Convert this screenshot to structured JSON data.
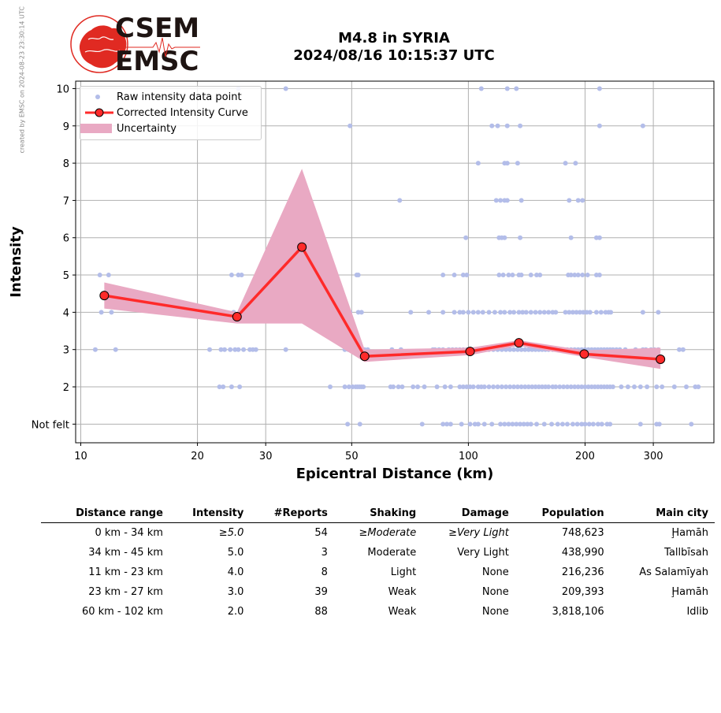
{
  "credit": "created by EMSC on 2024-08-23 23:30:14 UTC",
  "logo": {
    "line1": "CSEM",
    "line2": "EMSC"
  },
  "header": {
    "title": "M4.8 in SYRIA",
    "subtitle": "2024/08/16 10:15:37 UTC"
  },
  "colors": {
    "curve": "#ff2a2a",
    "uncertainty": "#e9a9c3",
    "raw": "#b3bde9",
    "grid": "#b0b0b0",
    "logo_red": "#e02a22"
  },
  "chart_data": {
    "type": "scatter",
    "title": "M4.8 in SYRIA 2024/08/16 10:15:37 UTC",
    "xlabel": "Epicentral Distance (km)",
    "ylabel": "Intensity",
    "x_scale": "log",
    "xlim": [
      9.7,
      430
    ],
    "ylim": [
      0.5,
      10.2
    ],
    "x_ticks": [
      10,
      20,
      30,
      50,
      100,
      200,
      300
    ],
    "y_ticks": [
      {
        "v": 1,
        "label": "Not felt"
      },
      {
        "v": 2,
        "label": "2"
      },
      {
        "v": 3,
        "label": "3"
      },
      {
        "v": 4,
        "label": "4"
      },
      {
        "v": 5,
        "label": "5"
      },
      {
        "v": 6,
        "label": "6"
      },
      {
        "v": 7,
        "label": "7"
      },
      {
        "v": 8,
        "label": "8"
      },
      {
        "v": 9,
        "label": "9"
      },
      {
        "v": 10,
        "label": "10"
      }
    ],
    "grid": true,
    "legend_position": "top-left",
    "legend": [
      "Raw intensity data point",
      "Corrected Intensity Curve",
      "Uncertainty"
    ],
    "curve": {
      "x": [
        11.5,
        25.3,
        37.2,
        54.0,
        101.0,
        135.0,
        199.0,
        313.0
      ],
      "y": [
        4.45,
        3.88,
        5.75,
        2.82,
        2.95,
        3.18,
        2.88,
        2.74
      ]
    },
    "uncertainty": {
      "x": [
        11.5,
        25.3,
        37.2,
        54.0,
        101.0,
        135.0,
        199.0,
        313.0
      ],
      "upper": [
        4.8,
        4.0,
        7.85,
        3.0,
        3.05,
        3.25,
        2.98,
        3.05
      ],
      "lower": [
        4.1,
        3.7,
        3.7,
        2.67,
        2.85,
        3.1,
        2.8,
        2.48
      ]
    },
    "raw_points": [
      {
        "y": 10,
        "x": [
          25.5,
          33.8,
          108,
          126,
          133,
          218
        ]
      },
      {
        "y": 9,
        "x": [
          49.5,
          115,
          119,
          126,
          136,
          218,
          282
        ]
      },
      {
        "y": 8,
        "x": [
          106,
          124,
          126,
          134,
          178,
          189
        ]
      },
      {
        "y": 7,
        "x": [
          66.5,
          118,
          121,
          124,
          126,
          137,
          182,
          192,
          197
        ]
      },
      {
        "y": 6,
        "x": [
          98.5,
          120,
          122,
          124,
          136,
          184,
          214,
          218
        ]
      },
      {
        "y": 5,
        "x": [
          11.2,
          11.8,
          24.5,
          25.5,
          26,
          51.5,
          52,
          86,
          92,
          97,
          99,
          120,
          123,
          127,
          130,
          135,
          137,
          145,
          150,
          153,
          181,
          184,
          188,
          192,
          197,
          203,
          214,
          218
        ]
      },
      {
        "y": 4,
        "x": [
          11.3,
          12,
          24.8,
          26,
          27,
          28,
          49.5,
          52,
          53,
          71,
          79,
          86,
          92,
          95,
          97,
          100,
          103,
          106,
          109,
          113,
          117,
          121,
          124,
          128,
          131,
          135,
          138,
          141,
          145,
          149,
          153,
          157,
          161,
          165,
          168,
          178,
          182,
          186,
          190,
          194,
          198,
          202,
          206,
          214,
          220,
          226,
          230,
          233,
          282,
          309
        ]
      },
      {
        "y": 3,
        "x": [
          10.9,
          12.3,
          21.5,
          23,
          23.5,
          24.3,
          25,
          25.5,
          26.3,
          27.3,
          27.8,
          28.3,
          33.8,
          48,
          49,
          50,
          51,
          52.5,
          54,
          55,
          63.5,
          67,
          81,
          82,
          84,
          86,
          89,
          91,
          93,
          95,
          97,
          99,
          101,
          104,
          107,
          110,
          113,
          116,
          119,
          122,
          125,
          128,
          131,
          134,
          137,
          140,
          143,
          146,
          149,
          152,
          155,
          158,
          161,
          165,
          168,
          172,
          176,
          180,
          184,
          188,
          192,
          196,
          200,
          204,
          208,
          212,
          216,
          220,
          224,
          228,
          232,
          236,
          241,
          246,
          254,
          270,
          282,
          287,
          296,
          302,
          309,
          350,
          358
        ]
      },
      {
        "y": 2,
        "x": [
          22.8,
          23.3,
          24.5,
          25.7,
          44,
          48,
          49.2,
          50.3,
          51.2,
          51.8,
          52.4,
          53,
          53.6,
          63,
          64,
          66,
          67.5,
          72,
          74,
          77,
          83,
          87,
          90,
          95,
          97,
          99,
          101,
          103,
          106,
          108,
          110,
          113,
          116,
          119,
          122,
          125,
          128,
          131,
          134,
          137,
          140,
          143,
          146,
          149,
          152,
          155,
          158,
          161,
          165,
          168,
          172,
          176,
          180,
          184,
          188,
          192,
          196,
          200,
          204,
          208,
          212,
          216,
          220,
          224,
          228,
          232,
          236,
          248,
          258,
          268,
          278,
          289,
          306,
          316,
          340,
          365,
          385,
          392
        ]
      },
      {
        "y": 1,
        "x": [
          48.8,
          52.5,
          76,
          86,
          88,
          90,
          96,
          101,
          104,
          106,
          110,
          115,
          121,
          124,
          127,
          130,
          133,
          136,
          139,
          142,
          145,
          150,
          157,
          164,
          170,
          175,
          180,
          186,
          191,
          196,
          200,
          205,
          210,
          216,
          221,
          228,
          232,
          278,
          306,
          311,
          376
        ]
      }
    ]
  },
  "table": {
    "headers": [
      "Distance range",
      "Intensity",
      "#Reports",
      "Shaking",
      "Damage",
      "Population",
      "Main city"
    ],
    "rows": [
      [
        "0 km -   34 km",
        "≥5.0",
        "54",
        "≥Moderate",
        "≥Very Light",
        "748,623",
        "Ḩamāh"
      ],
      [
        "34 km -   45 km",
        "5.0",
        "3",
        "Moderate",
        "Very Light",
        "438,990",
        "Tallbīsah"
      ],
      [
        "11 km -   23 km",
        "4.0",
        "8",
        "Light",
        "None",
        "216,236",
        "As Salamīyah"
      ],
      [
        "23 km -   27 km",
        "3.0",
        "39",
        "Weak",
        "None",
        "209,393",
        "Ḩamāh"
      ],
      [
        "60 km -  102 km",
        "2.0",
        "88",
        "Weak",
        "None",
        "3,818,106",
        "Idlib"
      ]
    ],
    "italic_cells": [
      [
        0,
        1
      ],
      [
        0,
        3
      ],
      [
        0,
        4
      ]
    ]
  }
}
